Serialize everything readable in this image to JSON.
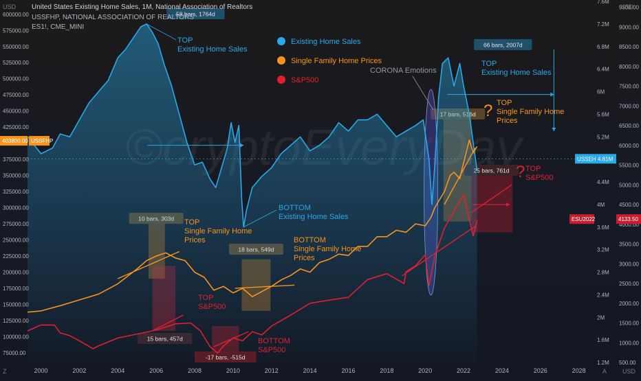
{
  "header": {
    "title": "United States Existing Home Sales, 1M, National Association of Realtors",
    "line2": "USSFHP, NATIONAL ASSOCIATION OF REALTORS",
    "line3": "ES1!, CME_MINI"
  },
  "corners": {
    "top_left": "USD",
    "top_right": "USD",
    "bottom_left": "Z",
    "bottom_right1": "A",
    "bottom_right2": "USD"
  },
  "colors": {
    "background": "#131722",
    "existing_sales": "#29a9e8",
    "sf_prices": "#f7941d",
    "sp500": "#e0202f"
  },
  "legend": [
    {
      "label": "Existing Home Sales",
      "color": "#29a9e8"
    },
    {
      "label": "Single Family Home Prices",
      "color": "#f7941d"
    },
    {
      "label": "S&P500",
      "color": "#e0202f"
    }
  ],
  "chart_data": {
    "type": "line",
    "x_axis": {
      "min": 1999.3,
      "max": 2028.8,
      "ticks": [
        "2000",
        "2002",
        "2004",
        "2006",
        "2008",
        "2010",
        "2012",
        "2014",
        "2016",
        "2018",
        "2020",
        "2022",
        "2024",
        "2026",
        "2028"
      ]
    },
    "price_axis_left": {
      "min": 60000,
      "max": 620000,
      "ticks": [
        "600000.00",
        "575000.00",
        "550000.00",
        "525000.00",
        "500000.00",
        "475000.00",
        "450000.00",
        "425000.00",
        "375000.00",
        "350000.00",
        "325000.00",
        "300000.00",
        "275000.00",
        "250000.00",
        "225000.00",
        "200000.00",
        "175000.00",
        "150000.00",
        "125000.00",
        "100000.00",
        "75000.00"
      ]
    },
    "sales_axis_right1": {
      "min": 1.2,
      "max": 7.6,
      "ticks": [
        "7.6M",
        "7.2M",
        "6.8M",
        "6.4M",
        "6M",
        "5.6M",
        "5.2M",
        "4.8M",
        "4.4M",
        "4M",
        "3.6M",
        "3.2M",
        "2.8M",
        "2.4M",
        "2M",
        "1.6M",
        "1.2M"
      ]
    },
    "sp_axis_right2": {
      "min": 500,
      "max": 9650,
      "ticks": [
        "9500.00",
        "9000.00",
        "8500.00",
        "8000.00",
        "7500.00",
        "7000.00",
        "6500.00",
        "6000.00",
        "5500.00",
        "5000.00",
        "4500.00",
        "4000.00",
        "3500.00",
        "3000.00",
        "2500.00",
        "2000.00",
        "1500.00",
        "1000.00",
        "500.00"
      ]
    },
    "series": [
      {
        "name": "Existing Home Sales",
        "unit": "M",
        "x": [
          1999.3,
          2000,
          2000.6,
          2001,
          2001.5,
          2002,
          2002.5,
          2003,
          2003.5,
          2004,
          2004.4,
          2004.8,
          2005.2,
          2005.5,
          2005.8,
          2006.1,
          2006.4,
          2006.8,
          2007.2,
          2007.6,
          2008,
          2008.4,
          2008.8,
          2009.1,
          2009.4,
          2009.7,
          2009.9,
          2010.1,
          2010.3,
          2010.45,
          2010.55,
          2010.7,
          2011,
          2011.5,
          2012,
          2012.5,
          2013,
          2013.5,
          2014,
          2014.5,
          2015,
          2015.5,
          2016,
          2016.5,
          2017,
          2017.5,
          2018,
          2018.5,
          2019,
          2019.5,
          2019.9,
          2020.2,
          2020.35,
          2020.5,
          2020.7,
          2020.9,
          2021.2,
          2021.5,
          2021.8,
          2022,
          2022.3,
          2022.5,
          2022.7
        ],
        "y": [
          5.2,
          4.9,
          5.0,
          5.25,
          5.2,
          5.5,
          5.8,
          6.0,
          6.2,
          6.6,
          6.75,
          6.95,
          7.15,
          7.2,
          7.05,
          6.85,
          6.5,
          6.1,
          5.6,
          5.1,
          4.7,
          4.75,
          4.45,
          4.3,
          4.65,
          5.0,
          5.45,
          5.1,
          5.4,
          4.1,
          3.6,
          3.9,
          4.3,
          4.5,
          4.65,
          4.9,
          5.05,
          5.2,
          4.95,
          5.05,
          5.2,
          5.45,
          5.3,
          5.5,
          5.5,
          5.6,
          5.4,
          5.2,
          5.3,
          5.4,
          5.5,
          4.8,
          4.0,
          4.7,
          5.9,
          6.5,
          6.6,
          6.1,
          6.5,
          6.1,
          5.6,
          5.1,
          4.6
        ]
      },
      {
        "name": "Single Family Home Prices",
        "unit": "USD",
        "x": [
          1999.3,
          2000,
          2001,
          2002,
          2003,
          2004,
          2005,
          2005.5,
          2006,
          2006.5,
          2007,
          2007.5,
          2008,
          2008.5,
          2009,
          2009.5,
          2010,
          2010.5,
          2011,
          2011.5,
          2012,
          2012.5,
          2013,
          2013.5,
          2014,
          2014.5,
          2015,
          2015.5,
          2016,
          2016.5,
          2017,
          2017.5,
          2018,
          2018.5,
          2019,
          2019.5,
          2020,
          2020.3,
          2020.5,
          2020.8,
          2021,
          2021.3,
          2021.5,
          2021.8,
          2022,
          2022.3,
          2022.5,
          2022.7
        ],
        "y": [
          138000,
          140000,
          148000,
          157000,
          166000,
          182000,
          205000,
          218000,
          225000,
          230000,
          222000,
          218000,
          200000,
          192000,
          172000,
          178000,
          168000,
          175000,
          162000,
          170000,
          178000,
          188000,
          195000,
          205000,
          200000,
          215000,
          220000,
          228000,
          226000,
          240000,
          240000,
          255000,
          255000,
          265000,
          262000,
          275000,
          272000,
          285000,
          300000,
          315000,
          325000,
          350000,
          355000,
          345000,
          370000,
          405000,
          385000,
          395000
        ]
      },
      {
        "name": "S&P500",
        "unit": "USD",
        "x": [
          1999.3,
          2000,
          2000.7,
          2001,
          2001.5,
          2002,
          2002.7,
          2003,
          2004,
          2005,
          2006,
          2007,
          2007.8,
          2008.3,
          2008.8,
          2009.2,
          2009.5,
          2010,
          2010.5,
          2011,
          2011.5,
          2012,
          2013,
          2014,
          2015,
          2016,
          2017,
          2018,
          2018.9,
          2019,
          2019.5,
          2020,
          2020.2,
          2020.5,
          2021,
          2021.5,
          2022,
          2022.5,
          2022.7
        ],
        "y": [
          1300,
          1450,
          1450,
          1250,
          1180,
          1050,
          850,
          920,
          1120,
          1220,
          1320,
          1480,
          1500,
          1300,
          900,
          740,
          920,
          1120,
          1050,
          1280,
          1200,
          1420,
          1700,
          2000,
          2080,
          2150,
          2600,
          2750,
          2500,
          2800,
          2950,
          3230,
          2450,
          3200,
          3900,
          4350,
          4750,
          3700,
          4100
        ]
      }
    ]
  },
  "annotations": {
    "top_sales": {
      "line1": "TOP",
      "line2": "Existing Home Sales"
    },
    "bottom_sales": {
      "line1": "BOTTOM",
      "line2": "Existing Home Sales"
    },
    "top_sf": {
      "line1": "TOP",
      "line2": "Single Family Home",
      "line3": "Prices"
    },
    "bottom_sf": {
      "line1": "BOTTOM",
      "line2": "Single Family Home",
      "line3": "Prices"
    },
    "top_sp": {
      "line1": "TOP",
      "line2": "S&P500"
    },
    "bottom_sp": {
      "line1": "BOTTOM",
      "line2": "S&P500"
    },
    "top_sales_2021": {
      "line1": "TOP",
      "line2": "Existing Home Sales"
    },
    "top_sf_2022": {
      "line1": "TOP",
      "line2": "Single Family Home",
      "line3": "Prices"
    },
    "top_sp_2022": {
      "line1": "TOP",
      "line2": "S&P500"
    },
    "corona": "CORONA Emotions",
    "question": "?",
    "watermark": "©cryptoEveryDay"
  },
  "measure_labels": {
    "m1": "58 bars, 1764d",
    "m2": "10 bars, 303d",
    "m3": "18 bars, 549d",
    "m4": "15 bars, 457d",
    "m5": "-17 bars, -515d",
    "m6": "66 bars, 2007d",
    "m7": "17 bars, 516d",
    "m8": "25 bars, 761d"
  },
  "price_tags": {
    "left_sf": "403800.00",
    "left_sf_symbol": "USSFHP",
    "sales_symbol": "USSEHS",
    "sales_value": "4.81M",
    "sp_symbol": "ESU2022",
    "sp_value": "4133.50"
  }
}
